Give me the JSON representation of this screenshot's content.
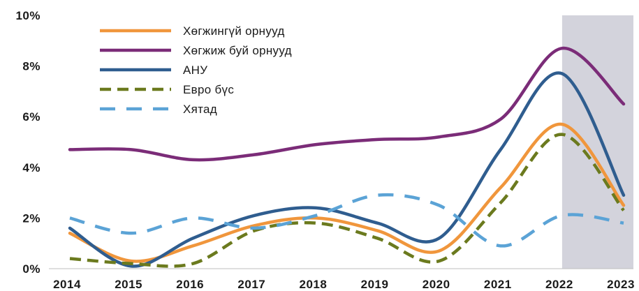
{
  "chart_data": {
    "type": "line",
    "title": "",
    "xlabel": "",
    "ylabel": "",
    "categories": [
      "2014",
      "2015",
      "2016",
      "2017",
      "2018",
      "2019",
      "2020",
      "2021",
      "2022",
      "2023"
    ],
    "y_tick_labels": [
      "0%",
      "2%",
      "4%",
      "6%",
      "8%",
      "10%"
    ],
    "ylim": [
      0,
      10
    ],
    "y_unit": "%",
    "grid": false,
    "legend_position": "top-left",
    "shaded_region": {
      "from": "2022",
      "to": "2023",
      "color": "#d3d3dc"
    },
    "series": [
      {
        "name": "Хөгжингүй орнууд",
        "color": "#f0963c",
        "dash": "solid",
        "values": [
          1.4,
          0.3,
          0.9,
          1.7,
          2.0,
          1.5,
          0.7,
          3.2,
          5.7,
          2.5
        ]
      },
      {
        "name": "Хөгжиж буй орнууд",
        "color": "#7b2c78",
        "dash": "solid",
        "values": [
          4.7,
          4.7,
          4.3,
          4.5,
          4.9,
          5.1,
          5.2,
          5.9,
          8.7,
          6.5
        ]
      },
      {
        "name": "АНУ",
        "color": "#2f5d8f",
        "dash": "solid",
        "values": [
          1.6,
          0.1,
          1.2,
          2.1,
          2.4,
          1.8,
          1.2,
          4.7,
          7.7,
          2.9
        ]
      },
      {
        "name": "Евро бүс",
        "color": "#6b7a1e",
        "dash": "long",
        "values": [
          0.4,
          0.2,
          0.2,
          1.5,
          1.8,
          1.2,
          0.3,
          2.6,
          5.3,
          2.3
        ]
      },
      {
        "name": "Хятад",
        "color": "#5ba3d6",
        "dash": "long-sparse",
        "values": [
          2.0,
          1.4,
          2.0,
          1.6,
          2.1,
          2.9,
          2.5,
          0.9,
          2.1,
          1.8
        ]
      }
    ]
  }
}
